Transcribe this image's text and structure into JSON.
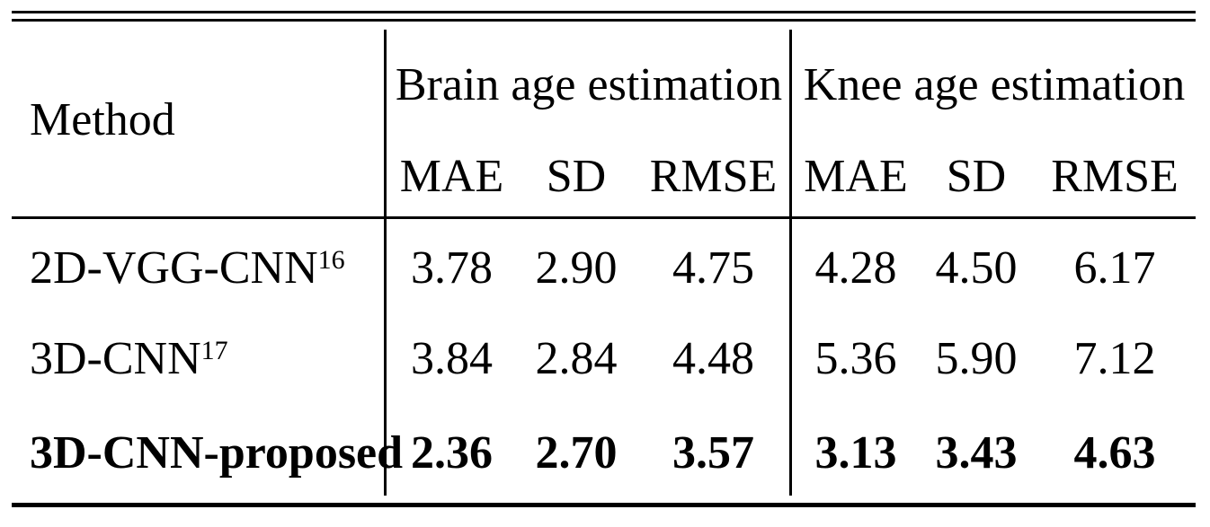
{
  "colors": {
    "background": "#ffffff",
    "text": "#000000",
    "rule": "#000000"
  },
  "table": {
    "method_header": "Method",
    "groups": [
      {
        "label": "Brain age estimation"
      },
      {
        "label": "Knee age estimation"
      }
    ],
    "metric_headers": [
      "MAE",
      "SD",
      "RMSE"
    ],
    "rows": [
      {
        "method": "2D-VGG-CNN",
        "ref": "16",
        "brain": [
          "3.78",
          "2.90",
          "4.75"
        ],
        "knee": [
          "4.28",
          "4.50",
          "6.17"
        ],
        "bold": false
      },
      {
        "method": "3D-CNN",
        "ref": "17",
        "brain": [
          "3.84",
          "2.84",
          "4.48"
        ],
        "knee": [
          "5.36",
          "5.90",
          "7.12"
        ],
        "bold": false
      },
      {
        "method": "3D-CNN-proposed",
        "ref": "",
        "brain": [
          "2.36",
          "2.70",
          "3.57"
        ],
        "knee": [
          "3.13",
          "3.43",
          "4.63"
        ],
        "bold": true
      }
    ]
  },
  "chart_data": {
    "type": "table",
    "columns": [
      "Method",
      "Brain MAE",
      "Brain SD",
      "Brain RMSE",
      "Knee MAE",
      "Knee SD",
      "Knee RMSE"
    ],
    "rows": [
      [
        "2D-VGG-CNN [16]",
        3.78,
        2.9,
        4.75,
        4.28,
        4.5,
        6.17
      ],
      [
        "3D-CNN [17]",
        3.84,
        2.84,
        4.48,
        5.36,
        5.9,
        7.12
      ],
      [
        "3D-CNN-proposed",
        2.36,
        2.7,
        3.57,
        3.13,
        3.43,
        4.63
      ]
    ]
  }
}
